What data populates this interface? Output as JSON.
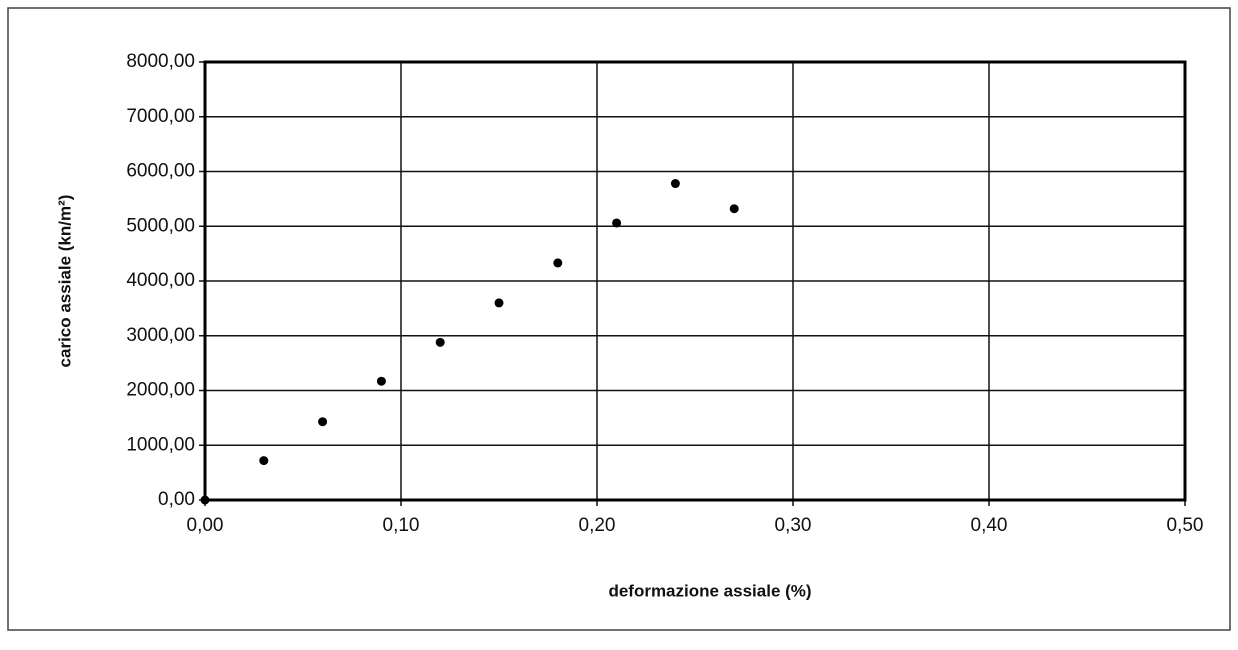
{
  "chart_data": {
    "type": "scatter",
    "xlabel": "deformazione assiale (%)",
    "ylabel": "carico assiale (kn/m²)",
    "series": [
      {
        "name": "carico",
        "color": "#000000",
        "x": [
          0,
          0.03,
          0.06,
          0.09,
          0.12,
          0.15,
          0.18,
          0.21,
          0.24,
          0.27
        ],
        "values": [
          0,
          720,
          1430,
          2170,
          2880,
          3600,
          4330,
          5060,
          5780,
          5320
        ]
      }
    ],
    "xlim": [
      0,
      0.5
    ],
    "xticks": [
      {
        "value": 0,
        "label": "0,00"
      },
      {
        "value": 0.1,
        "label": "0,10"
      },
      {
        "value": 0.2,
        "label": "0,20"
      },
      {
        "value": 0.3,
        "label": "0,30"
      },
      {
        "value": 0.4,
        "label": "0,40"
      },
      {
        "value": 0.5,
        "label": "0,50"
      }
    ],
    "ylim": [
      0,
      8000
    ],
    "yticks": [
      {
        "value": 0,
        "label": "0,00"
      },
      {
        "value": 1000,
        "label": "1000,00"
      },
      {
        "value": 2000,
        "label": "2000,00"
      },
      {
        "value": 3000,
        "label": "3000,00"
      },
      {
        "value": 4000,
        "label": "4000,00"
      },
      {
        "value": 5000,
        "label": "5000,00"
      },
      {
        "value": 6000,
        "label": "6000,00"
      },
      {
        "value": 7000,
        "label": "7000,00"
      },
      {
        "value": 8000,
        "label": "8000,00"
      }
    ],
    "grid": true
  }
}
